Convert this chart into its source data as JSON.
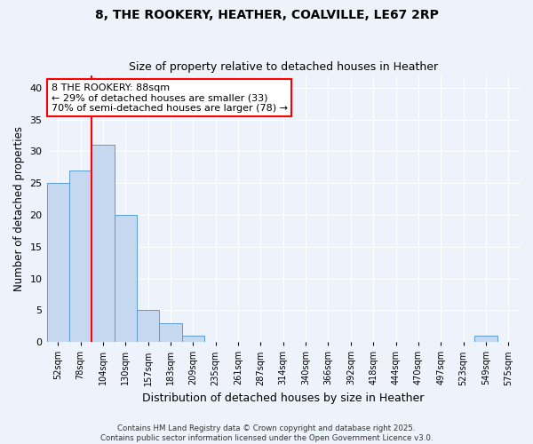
{
  "title1": "8, THE ROOKERY, HEATHER, COALVILLE, LE67 2RP",
  "title2": "Size of property relative to detached houses in Heather",
  "xlabel": "Distribution of detached houses by size in Heather",
  "ylabel": "Number of detached properties",
  "bins": [
    "52sqm",
    "78sqm",
    "104sqm",
    "130sqm",
    "157sqm",
    "183sqm",
    "209sqm",
    "235sqm",
    "261sqm",
    "287sqm",
    "314sqm",
    "340sqm",
    "366sqm",
    "392sqm",
    "418sqm",
    "444sqm",
    "470sqm",
    "497sqm",
    "523sqm",
    "549sqm",
    "575sqm"
  ],
  "values": [
    25,
    27,
    31,
    20,
    5,
    3,
    1,
    0,
    0,
    0,
    0,
    0,
    0,
    0,
    0,
    0,
    0,
    0,
    0,
    1,
    0
  ],
  "bar_color": "#c5d8f0",
  "bar_edgecolor": "#5b9bd5",
  "annotation_title": "8 THE ROOKERY: 88sqm",
  "annotation_line1": "← 29% of detached houses are smaller (33)",
  "annotation_line2": "70% of semi-detached houses are larger (78) →",
  "red_line_x": 1.5,
  "ylim": [
    0,
    42
  ],
  "yticks": [
    0,
    5,
    10,
    15,
    20,
    25,
    30,
    35,
    40
  ],
  "footer1": "Contains HM Land Registry data © Crown copyright and database right 2025.",
  "footer2": "Contains public sector information licensed under the Open Government Licence v3.0.",
  "bg_color": "#eef2fb"
}
